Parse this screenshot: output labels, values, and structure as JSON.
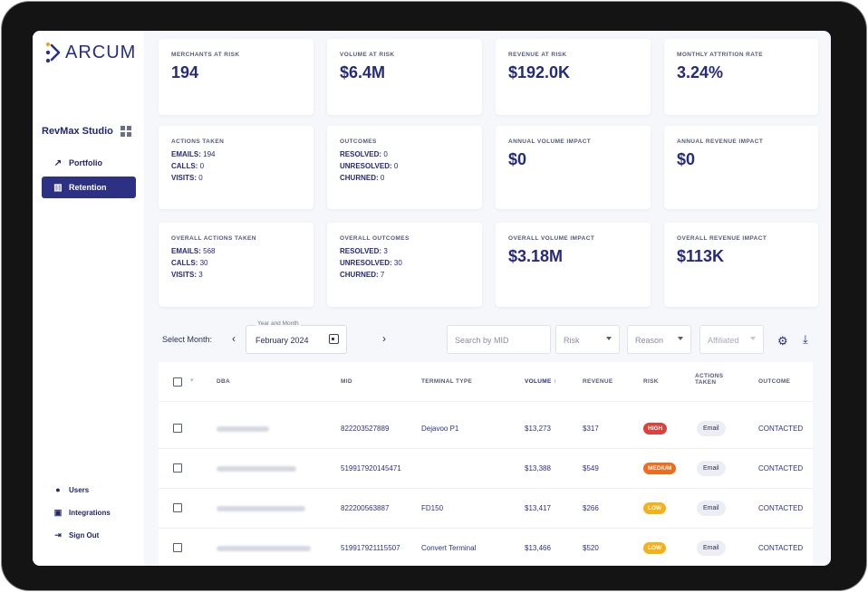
{
  "app": {
    "brand": "ARCUM",
    "studio": "RevMax Studio"
  },
  "nav": [
    {
      "label": "Portfolio",
      "icon": "trend-icon"
    },
    {
      "label": "Retention",
      "icon": "chart-icon"
    }
  ],
  "bottom_nav": [
    {
      "label": "Users",
      "icon": "user-icon"
    },
    {
      "label": "Integrations",
      "icon": "integrations-icon"
    },
    {
      "label": "Sign Out",
      "icon": "sign-out-icon"
    }
  ],
  "kpis_row1": [
    {
      "label": "MERCHANTS AT RISK",
      "value": "194"
    },
    {
      "label": "VOLUME AT RISK",
      "value": "$6.4M"
    },
    {
      "label": "REVENUE AT RISK",
      "value": "$192.0K"
    },
    {
      "label": "MONTHLY ATTRITION RATE",
      "value": "3.24%"
    }
  ],
  "actions_taken": {
    "label": "ACTIONS TAKEN",
    "emails_k": "EMAILS:",
    "emails": "194",
    "calls_k": "CALLS:",
    "calls": "0",
    "visits_k": "VISITS:",
    "visits": "0"
  },
  "outcomes": {
    "label": "OUTCOMES",
    "resolved_k": "RESOLVED:",
    "resolved": "0",
    "unresolved_k": "UNRESOLVED:",
    "unresolved": "0",
    "churned_k": "CHURNED:",
    "churned": "0"
  },
  "annual_volume": {
    "label": "ANNUAL VOLUME IMPACT",
    "value": "$0"
  },
  "annual_revenue": {
    "label": "ANNUAL REVENUE IMPACT",
    "value": "$0"
  },
  "overall_actions": {
    "label": "OVERALL ACTIONS TAKEN",
    "emails_k": "EMAILS:",
    "emails": "568",
    "calls_k": "CALLS:",
    "calls": "30",
    "visits_k": "VISITS:",
    "visits": "3"
  },
  "overall_outcomes": {
    "label": "OVERALL OUTCOMES",
    "resolved_k": "RESOLVED:",
    "resolved": "3",
    "unresolved_k": "UNRESOLVED:",
    "unresolved": "30",
    "churned_k": "CHURNED:",
    "churned": "7"
  },
  "overall_volume": {
    "label": "OVERALL VOLUME IMPACT",
    "value": "$3.18M"
  },
  "overall_revenue": {
    "label": "OVERALL REVENUE IMPACT",
    "value": "$113K"
  },
  "filters": {
    "select_month_label": "Select Month:",
    "month_field_label": "Year and Month",
    "month_value": "February 2024",
    "search_placeholder": "Search by MID",
    "risk": "Risk",
    "reason": "Reason",
    "affiliated": "Affiliated"
  },
  "table": {
    "headers": {
      "dba": "DBA",
      "mid": "MID",
      "terminal": "TERMINAL TYPE",
      "volume": "VOLUME ↑",
      "revenue": "REVENUE",
      "risk": "RISK",
      "actions1": "ACTIONS",
      "actions2": "TAKEN",
      "outcome": "OUTCOME"
    },
    "rows": [
      {
        "mid": "822203527889",
        "terminal": "Dejavoo P1",
        "volume": "$13,273",
        "revenue": "$317",
        "risk": "HIGH",
        "risk_color": "#e0403a",
        "action": "Email",
        "outcome": "CONTACTED"
      },
      {
        "mid": "519917920145471",
        "terminal": "",
        "volume": "$13,388",
        "revenue": "$549",
        "risk": "MEDIUM",
        "risk_color": "#f26a1b",
        "action": "Email",
        "outcome": "CONTACTED"
      },
      {
        "mid": "822200563887",
        "terminal": "FD150",
        "volume": "$13,417",
        "revenue": "$266",
        "risk": "LOW",
        "risk_color": "#f6b119",
        "action": "Email",
        "outcome": "CONTACTED"
      },
      {
        "mid": "519917921115507",
        "terminal": "Convert Terminal",
        "volume": "$13,466",
        "revenue": "$520",
        "risk": "LOW",
        "risk_color": "#f6b119",
        "action": "Email",
        "outcome": "CONTACTED"
      }
    ]
  }
}
